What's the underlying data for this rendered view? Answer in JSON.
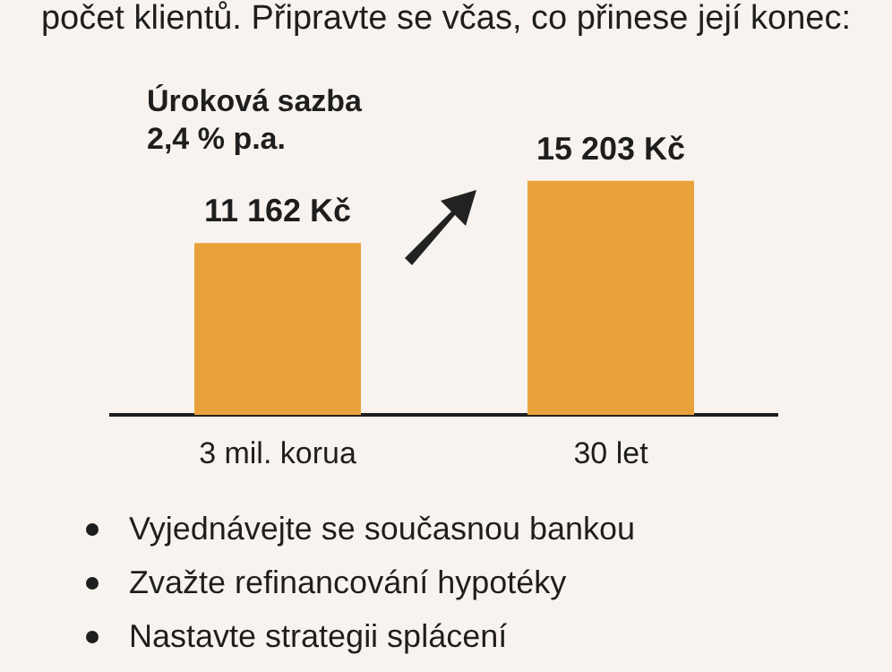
{
  "chart_data": {
    "type": "bar",
    "title": "počet klientů. Připravte se včas, co přinese její konec:",
    "categories": [
      "3 mil. korua",
      "30 let"
    ],
    "values": [
      11162,
      15203
    ],
    "value_labels": [
      "11 162 Kč",
      "15 203 Kč"
    ],
    "color": "#e9a23b",
    "grid": false,
    "legend": false,
    "annotations": [
      "Úroková sazba 2,4 % p.a.",
      "Vyjednávejte se současnou bankou",
      "Zvažte refinancování hypotéky",
      "Nastavte strategii splácení"
    ]
  }
}
